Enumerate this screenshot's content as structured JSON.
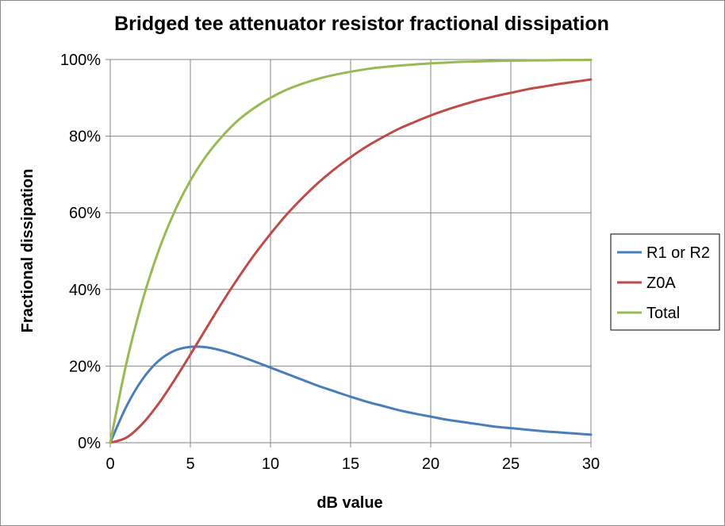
{
  "chart_data": {
    "type": "line",
    "title": "Bridged tee attenuator resistor fractional dissipation",
    "xlabel": "dB value",
    "ylabel": "Fractional dissipation",
    "xlim": [
      0,
      30
    ],
    "ylim": [
      0,
      1
    ],
    "x_ticks": [
      0,
      5,
      10,
      15,
      20,
      25,
      30
    ],
    "x_tick_labels": [
      "0",
      "5",
      "10",
      "15",
      "20",
      "25",
      "30"
    ],
    "y_ticks": [
      0,
      0.2,
      0.4,
      0.6,
      0.8,
      1.0
    ],
    "y_tick_labels": [
      "0%",
      "20%",
      "40%",
      "60%",
      "80%",
      "100%"
    ],
    "grid": true,
    "legend_position": "right",
    "x": [
      0,
      1,
      2,
      3,
      4,
      5,
      6,
      7,
      8,
      9,
      10,
      11,
      12,
      13,
      14,
      15,
      16,
      17,
      18,
      19,
      20,
      21,
      22,
      23,
      24,
      25,
      26,
      27,
      28,
      29,
      30
    ],
    "series": [
      {
        "name": "R1 or R2",
        "color": "#4a7ebb",
        "values": [
          0,
          0.094,
          0.165,
          0.213,
          0.24,
          0.25,
          0.249,
          0.24,
          0.227,
          0.212,
          0.196,
          0.18,
          0.164,
          0.148,
          0.134,
          0.12,
          0.107,
          0.096,
          0.085,
          0.076,
          0.068,
          0.06,
          0.054,
          0.048,
          0.042,
          0.038,
          0.034,
          0.03,
          0.027,
          0.024,
          0.021
        ]
      },
      {
        "name": "Z0A",
        "color": "#be4b48",
        "values": [
          0,
          0.013,
          0.049,
          0.101,
          0.163,
          0.23,
          0.299,
          0.367,
          0.431,
          0.491,
          0.545,
          0.595,
          0.639,
          0.679,
          0.714,
          0.745,
          0.773,
          0.797,
          0.819,
          0.837,
          0.854,
          0.869,
          0.882,
          0.894,
          0.904,
          0.913,
          0.922,
          0.929,
          0.936,
          0.942,
          0.948
        ]
      },
      {
        "name": "Total",
        "color": "#98b954",
        "values": [
          0,
          0.206,
          0.369,
          0.499,
          0.602,
          0.684,
          0.749,
          0.8,
          0.842,
          0.874,
          0.9,
          0.921,
          0.937,
          0.95,
          0.96,
          0.968,
          0.975,
          0.98,
          0.984,
          0.987,
          0.99,
          0.992,
          0.994,
          0.995,
          0.996,
          0.997,
          0.9975,
          0.998,
          0.9985,
          0.9987,
          0.999
        ]
      }
    ]
  }
}
